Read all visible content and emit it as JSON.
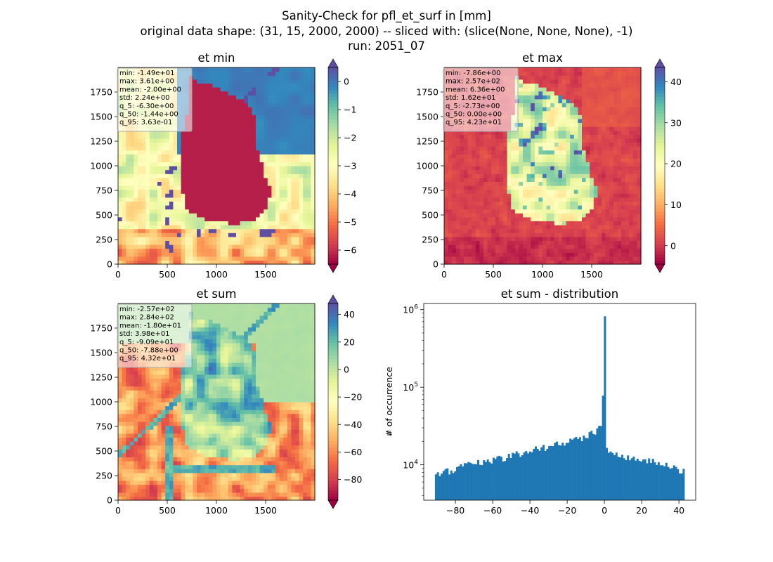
{
  "figure": {
    "title_lines": [
      "Sanity-Check for pfl_et_surf in [mm]",
      "original data shape: (31, 15, 2000, 2000) -- sliced with: (slice(None, None, None), -1)",
      "run: 2051_07"
    ]
  },
  "colors": {
    "spectral": [
      "#9e0142",
      "#d53e4f",
      "#f46d43",
      "#fdae61",
      "#fee08b",
      "#ffffbf",
      "#e6f598",
      "#abdda4",
      "#66c2a5",
      "#3288bd",
      "#5e4fa2"
    ],
    "histogram_bar": "#1f77b4",
    "germany_mask": "#b51f4a",
    "stats_box_border": "#aaaaaa"
  },
  "chart_data": [
    {
      "type": "heatmap",
      "title": "et min",
      "xlim": [
        0,
        2000
      ],
      "ylim": [
        0,
        2000
      ],
      "xticks": [
        0,
        500,
        1000,
        1500
      ],
      "yticks": [
        0,
        250,
        500,
        750,
        1000,
        1250,
        1500,
        1750
      ],
      "colormap": "Spectral",
      "color_range": [
        -6.5,
        0.5
      ],
      "colorbar_ticks": [
        0,
        -1,
        -2,
        -3,
        -4,
        -5,
        -6
      ],
      "colorbar_extend": "both",
      "stats_box": {
        "placement": "top-left",
        "lines": [
          "min: -1.49e+01",
          "max: 3.61e+00",
          "mean: -2.00e+00",
          "std: 2.24e+00",
          "q_5: -6.30e+00",
          "q_50: -1.44e+00",
          "q_95: 3.63e-01"
        ]
      }
    },
    {
      "type": "heatmap",
      "title": "et max",
      "xlim": [
        0,
        2000
      ],
      "ylim": [
        0,
        2000
      ],
      "xticks": [
        0,
        500,
        1000,
        1500
      ],
      "yticks": [
        0,
        250,
        500,
        750,
        1000,
        1250,
        1500,
        1750
      ],
      "colormap": "Spectral",
      "color_range": [
        -4.5,
        43.5
      ],
      "colorbar_ticks": [
        0,
        10,
        20,
        30,
        40
      ],
      "colorbar_extend": "both",
      "stats_box": {
        "placement": "top-left",
        "lines": [
          "min: -7.86e+00",
          "max: 2.57e+02",
          "mean: 6.36e+00",
          "std: 1.62e+01",
          "q_5: -2.73e+00",
          "q_50: 0.00e+00",
          "q_95: 4.23e+01"
        ]
      }
    },
    {
      "type": "heatmap",
      "title": "et sum",
      "xlim": [
        0,
        2000
      ],
      "ylim": [
        0,
        2000
      ],
      "xticks": [
        0,
        500,
        1000,
        1500
      ],
      "yticks": [
        0,
        250,
        500,
        750,
        1000,
        1250,
        1500,
        1750
      ],
      "colormap": "Spectral",
      "color_range": [
        -95,
        48
      ],
      "colorbar_ticks": [
        40,
        20,
        0,
        -20,
        -40,
        -60,
        -80
      ],
      "colorbar_extend": "both",
      "stats_box": {
        "placement": "top-left",
        "lines": [
          "min: -2.57e+02",
          "max: 2.84e+02",
          "mean: -1.80e+01",
          "std: 3.98e+01",
          "q_5: -9.09e+01",
          "q_50: -7.88e+00",
          "q_95: 4.32e+01"
        ]
      }
    },
    {
      "type": "bar",
      "title": "et sum - distribution",
      "xlabel": "",
      "ylabel": "# of occurrence",
      "yscale": "log",
      "xlim": [
        -97,
        49
      ],
      "ylim": [
        3500,
        1200000
      ],
      "xticks": [
        -80,
        -60,
        -40,
        -20,
        0,
        20,
        40
      ],
      "ytick_labels": [
        {
          "value": 10000,
          "base": "10",
          "exp": "4"
        },
        {
          "value": 100000,
          "base": "10",
          "exp": "5"
        },
        {
          "value": 1000000,
          "base": "10",
          "exp": "6"
        }
      ],
      "bin_range": [
        -91,
        43
      ],
      "bin_count": 130,
      "envelope": [
        [
          -91,
          7000
        ],
        [
          -80,
          9000
        ],
        [
          -60,
          11500
        ],
        [
          -40,
          15000
        ],
        [
          -20,
          19500
        ],
        [
          -10,
          23000
        ],
        [
          -4,
          27000
        ],
        [
          -2,
          34000
        ],
        [
          -1,
          42000
        ],
        [
          0,
          820000
        ],
        [
          1,
          16500
        ],
        [
          5,
          14500
        ],
        [
          10,
          13000
        ],
        [
          20,
          12000
        ],
        [
          30,
          10500
        ],
        [
          40,
          8500
        ],
        [
          43,
          8000
        ]
      ]
    }
  ]
}
